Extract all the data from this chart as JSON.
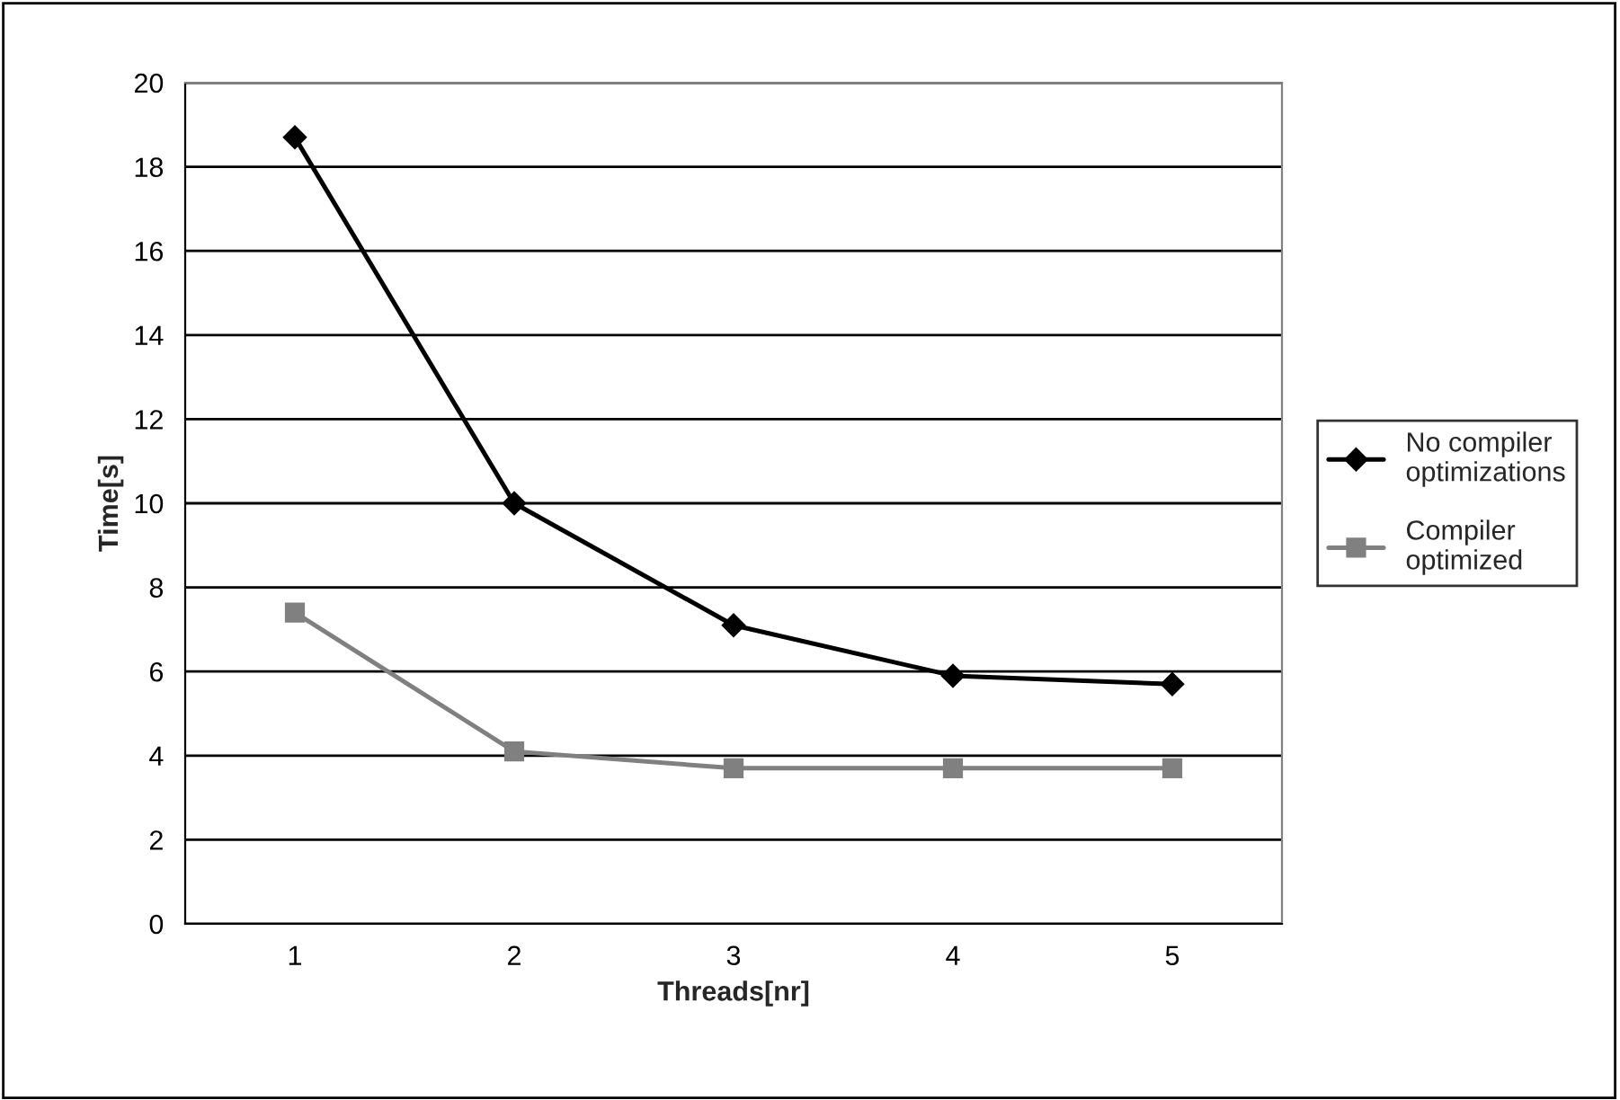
{
  "chart_data": {
    "type": "line",
    "xlabel": "Threads[nr]",
    "ylabel": "Time[s]",
    "categories": [
      "1",
      "2",
      "3",
      "4",
      "5"
    ],
    "series": [
      {
        "name": "No compiler\noptimizations",
        "color": "#000000",
        "marker": "diamond",
        "values": [
          18.7,
          10.0,
          7.1,
          5.9,
          5.7
        ]
      },
      {
        "name": "Compiler\noptimized",
        "color": "#808080",
        "marker": "square",
        "values": [
          7.4,
          4.1,
          3.7,
          3.7,
          3.7
        ]
      }
    ],
    "ylim": [
      0,
      20
    ],
    "yticks": [
      0,
      2,
      4,
      6,
      8,
      10,
      12,
      14,
      16,
      18,
      20
    ],
    "grid": "y",
    "legend": "right",
    "line_style": "solid"
  }
}
